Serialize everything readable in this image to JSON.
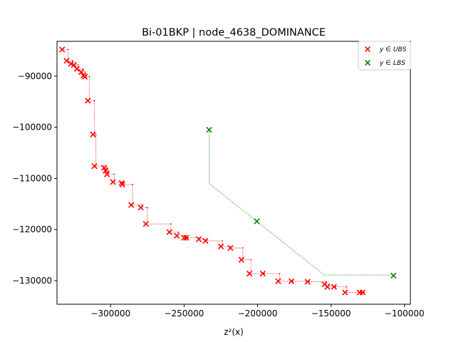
{
  "chart_data": {
    "type": "scatter",
    "title": "Bi-01BKP | node_4638_DOMINANCE",
    "xlabel": "z²(x)",
    "ylabel": "",
    "xlim": [
      -336500,
      -96000
    ],
    "ylim": [
      -134600,
      -83200
    ],
    "x_ticks": [
      -300000,
      -250000,
      -200000,
      -150000,
      -100000
    ],
    "x_tick_labels": [
      "−300000",
      "−250000",
      "−200000",
      "−150000",
      "−100000"
    ],
    "y_ticks": [
      -90000,
      -100000,
      -110000,
      -120000,
      -130000
    ],
    "y_tick_labels": [
      "−90000",
      "−100000",
      "−110000",
      "−120000",
      "−130000"
    ],
    "legend": {
      "position": "top-right",
      "entries": [
        {
          "label": "y ∈ UBS",
          "color": "#ff0000",
          "marker": "x"
        },
        {
          "label": "y ∈ LBS",
          "color": "#008000",
          "marker": "x"
        }
      ]
    },
    "series": [
      {
        "name": "UBS",
        "color": "#ff0000",
        "line_style": "staircase-dotted",
        "points": [
          [
            -333000,
            -84800
          ],
          [
            -330000,
            -87000
          ],
          [
            -327000,
            -87600
          ],
          [
            -325000,
            -87800
          ],
          [
            -323000,
            -88600
          ],
          [
            -320000,
            -89200
          ],
          [
            -318500,
            -89900
          ],
          [
            -317500,
            -90100
          ],
          [
            -315500,
            -94800
          ],
          [
            -312000,
            -101400
          ],
          [
            -311000,
            -107600
          ],
          [
            -304500,
            -107900
          ],
          [
            -303500,
            -108500
          ],
          [
            -302500,
            -109200
          ],
          [
            -298500,
            -110700
          ],
          [
            -292500,
            -110900
          ],
          [
            -292000,
            -111200
          ],
          [
            -286000,
            -115200
          ],
          [
            -279500,
            -115700
          ],
          [
            -276000,
            -118900
          ],
          [
            -260000,
            -120500
          ],
          [
            -255000,
            -121200
          ],
          [
            -250000,
            -121600
          ],
          [
            -248500,
            -121600
          ],
          [
            -240000,
            -121900
          ],
          [
            -235500,
            -122200
          ],
          [
            -225000,
            -123300
          ],
          [
            -218500,
            -123600
          ],
          [
            -211000,
            -125900
          ],
          [
            -205500,
            -128600
          ],
          [
            -196500,
            -128600
          ],
          [
            -186000,
            -130100
          ],
          [
            -177000,
            -130100
          ],
          [
            -166000,
            -130200
          ],
          [
            -154500,
            -130700
          ],
          [
            -152500,
            -131200
          ],
          [
            -148000,
            -131200
          ],
          [
            -140500,
            -132300
          ],
          [
            -130500,
            -132300
          ],
          [
            -128500,
            -132300
          ]
        ]
      },
      {
        "name": "LBS",
        "color": "#008000",
        "points": [
          [
            -233000,
            -100500
          ],
          [
            -200500,
            -118400
          ],
          [
            -107500,
            -129000
          ]
        ],
        "hull": [
          [
            -233000,
            -100500
          ],
          [
            -233000,
            -111000
          ],
          [
            -154500,
            -128900
          ],
          [
            -107500,
            -128900
          ]
        ]
      }
    ]
  }
}
